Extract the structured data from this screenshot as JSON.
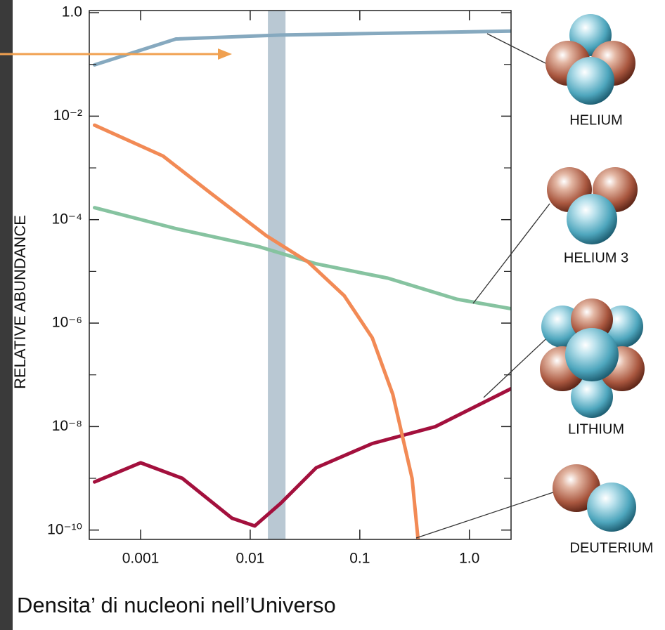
{
  "chart_data": {
    "type": "line",
    "caption": "Densita’ di nucleoni nell’Universo",
    "y_label": "RELATIVE ABUNDANCE",
    "xscale": "log",
    "yscale": "log",
    "xlim": [
      0.00034,
      2.4
    ],
    "ylim": [
      6.6e-11,
      1.1
    ],
    "xticks": [
      0.001,
      0.01,
      0.1,
      {
        "value": 1,
        "label": "1.0"
      }
    ],
    "yticks": [
      {
        "value": 1,
        "label": "1.0"
      },
      {
        "value": 0.01,
        "label": "10⁻²"
      },
      {
        "value": 0.0001,
        "label": "10⁻⁴"
      },
      {
        "value": 1e-06,
        "label": "10⁻⁶"
      },
      {
        "value": 1e-08,
        "label": "10⁻⁸"
      },
      {
        "value": 1e-10,
        "label": "10⁻¹⁰"
      }
    ],
    "yminor": [
      0.1,
      0.001,
      1e-05,
      1e-07,
      1e-09
    ],
    "band": {
      "x": [
        0.0145,
        0.021
      ],
      "color": "#b9c8d3"
    },
    "series": [
      {
        "name": "HELIUM",
        "color": "#86a9bf",
        "x": [
          0.00038,
          0.0021,
          0.019,
          2.4
        ],
        "values": [
          0.098,
          0.31,
          0.37,
          0.44
        ]
      },
      {
        "name": "HELIUM 3",
        "color": "#86c3a0",
        "x": [
          0.00038,
          0.0021,
          0.012,
          0.04,
          0.18,
          0.77,
          2.4
        ],
        "values": [
          0.00017,
          6.7e-05,
          3e-05,
          1.4e-05,
          7.4e-06,
          2.9e-06,
          1.9e-06
        ]
      },
      {
        "name": "LITHIUM",
        "color": "#a3103d",
        "x": [
          0.00038,
          0.001,
          0.0024,
          0.0068,
          0.011,
          0.019,
          0.04,
          0.13,
          0.49,
          2.4
        ],
        "values": [
          8.5e-10,
          2e-09,
          1e-09,
          1.7e-10,
          1.2e-10,
          3.3e-10,
          1.6e-09,
          4.7e-09,
          1e-08,
          5.4e-08
        ]
      },
      {
        "name": "DEUTERIUM",
        "color": "#f28a55",
        "x": [
          0.00038,
          0.0016,
          0.0044,
          0.014,
          0.034,
          0.072,
          0.13,
          0.2,
          0.3,
          0.34
        ],
        "values": [
          0.0067,
          0.0017,
          0.00032,
          4.9e-05,
          1.5e-05,
          3.4e-06,
          5.2e-07,
          4.2e-08,
          1e-09,
          6.6e-11
        ]
      }
    ]
  }
}
